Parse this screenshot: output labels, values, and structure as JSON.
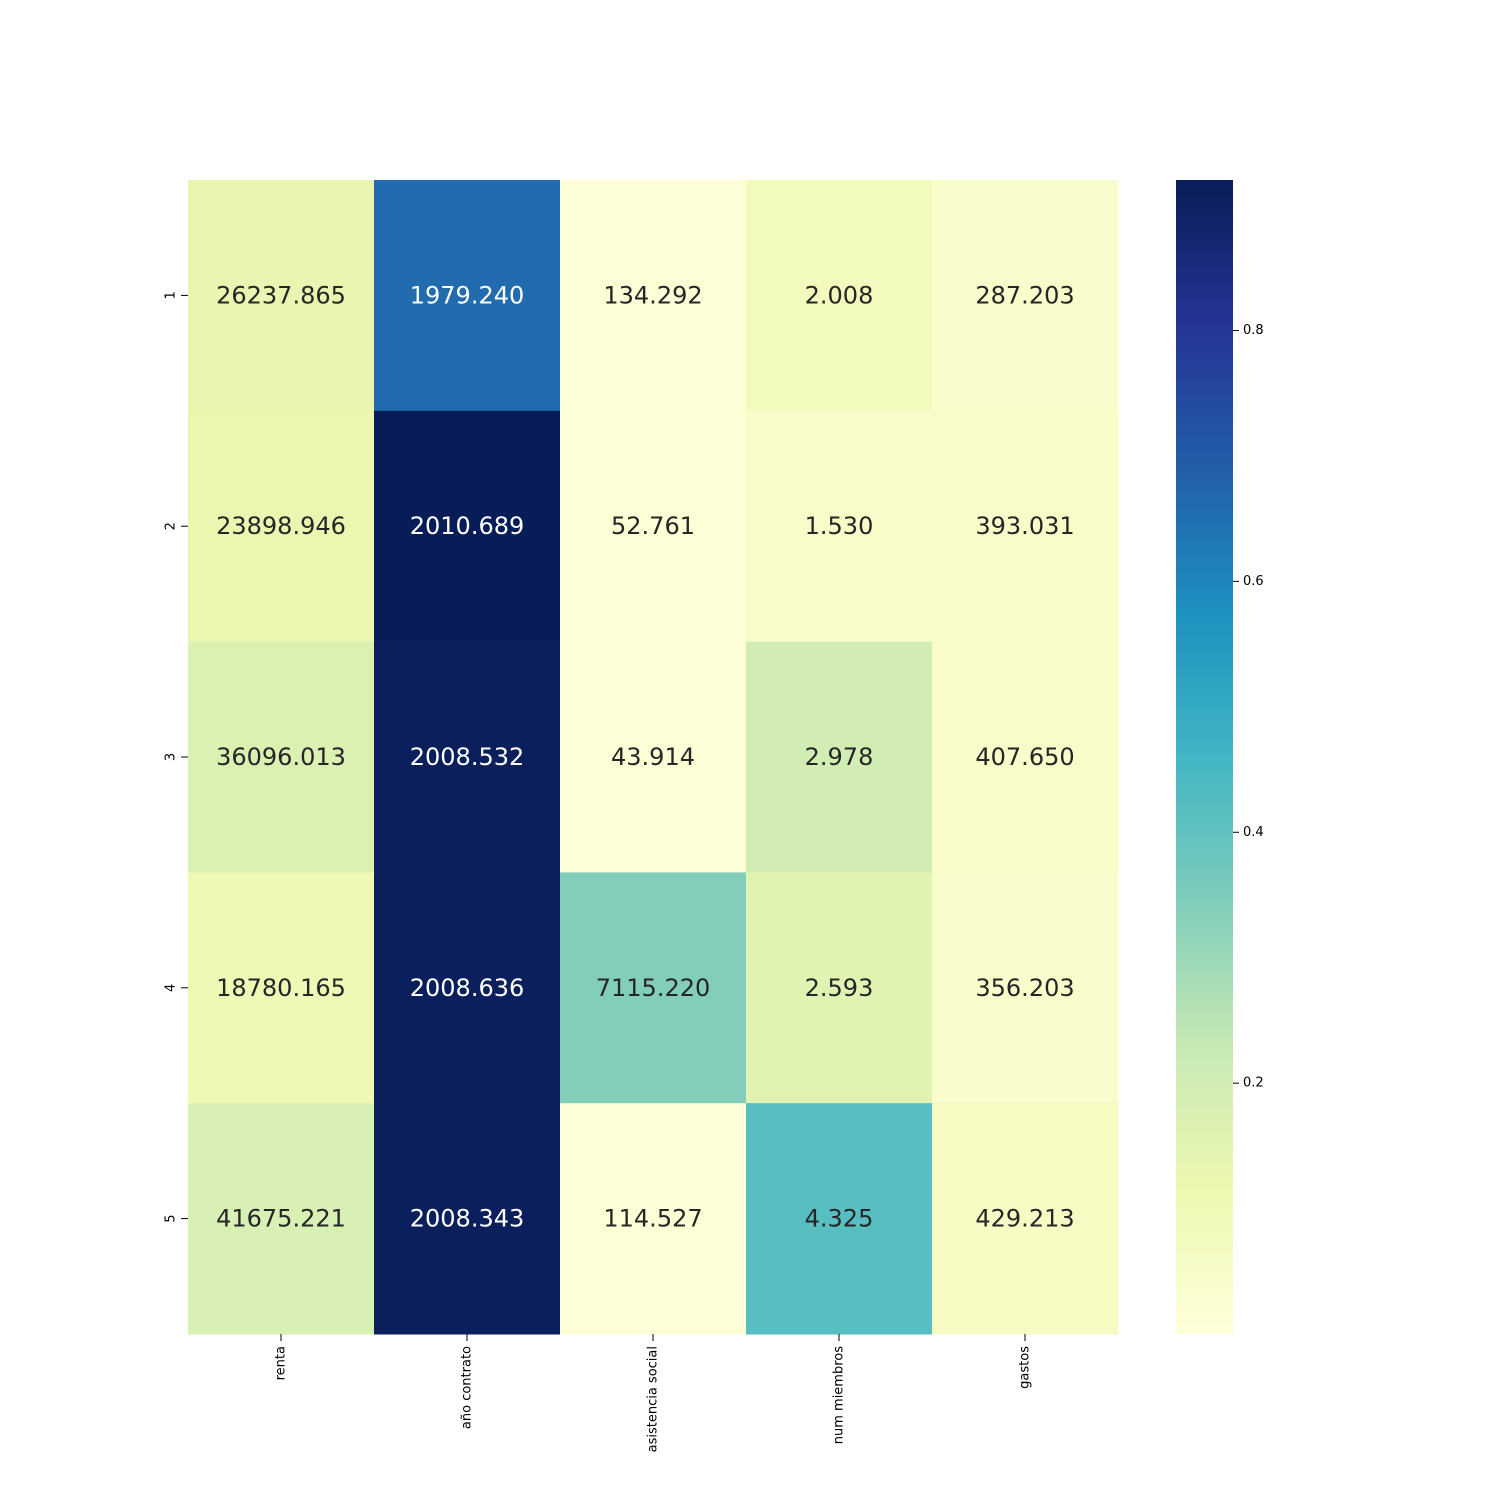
{
  "chart_data": {
    "type": "heatmap",
    "title": "",
    "xlabel": "",
    "ylabel": "",
    "colormap": "YlGnBu",
    "columns": [
      "renta",
      "año contrato",
      "asistencia social",
      "num miembros",
      "gastos"
    ],
    "rows": [
      "1",
      "2",
      "3",
      "4",
      "5"
    ],
    "annotations": [
      [
        "26237.865",
        "1979.240",
        "134.292",
        "2.008",
        "287.203"
      ],
      [
        "23898.946",
        "2010.689",
        "52.761",
        "1.530",
        "393.031"
      ],
      [
        "36096.013",
        "2008.532",
        "43.914",
        "2.978",
        "407.650"
      ],
      [
        "18780.165",
        "2008.636",
        "7115.220",
        "2.593",
        "356.203"
      ],
      [
        "41675.221",
        "2008.343",
        "114.527",
        "4.325",
        "429.213"
      ]
    ],
    "color_values": [
      [
        0.13,
        0.66,
        0.01,
        0.08,
        0.04
      ],
      [
        0.12,
        0.92,
        0.01,
        0.05,
        0.05
      ],
      [
        0.17,
        0.91,
        0.01,
        0.2,
        0.05
      ],
      [
        0.1,
        0.91,
        0.34,
        0.15,
        0.04
      ],
      [
        0.18,
        0.91,
        0.01,
        0.42,
        0.06
      ]
    ],
    "colorbar": {
      "range": [
        0.0,
        0.92
      ],
      "ticks": [
        0.2,
        0.4,
        0.6,
        0.8
      ],
      "tick_labels": [
        "0.2",
        "0.4",
        "0.6",
        "0.8"
      ]
    }
  }
}
